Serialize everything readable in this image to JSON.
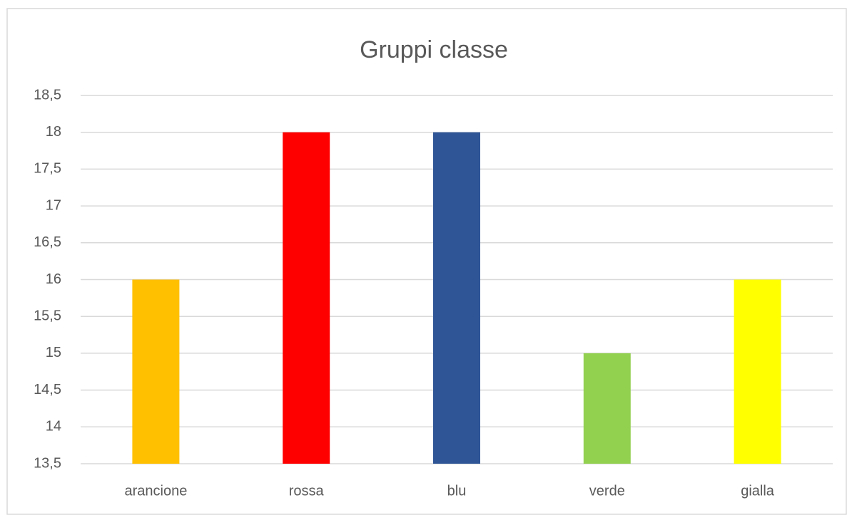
{
  "chart_data": {
    "type": "bar",
    "title": "Gruppi classe",
    "categories": [
      "arancione",
      "rossa",
      "blu",
      "verde",
      "gialla"
    ],
    "values": [
      16,
      18,
      18,
      15,
      16
    ],
    "colors": [
      "#ffc000",
      "#ff0000",
      "#2f5597",
      "#92d050",
      "#ffff00"
    ],
    "ylim": [
      13.5,
      18.5
    ],
    "yticks": [
      {
        "value": 13.5,
        "label": "13,5"
      },
      14,
      {
        "value": 14.5,
        "label": "14,5"
      },
      15,
      {
        "value": 15.5,
        "label": "15,5"
      },
      16,
      {
        "value": 16.5,
        "label": "16,5"
      },
      17,
      {
        "value": 17.5,
        "label": "17,5"
      },
      18,
      {
        "value": 18.5,
        "label": "18,5"
      }
    ],
    "grid": true
  }
}
